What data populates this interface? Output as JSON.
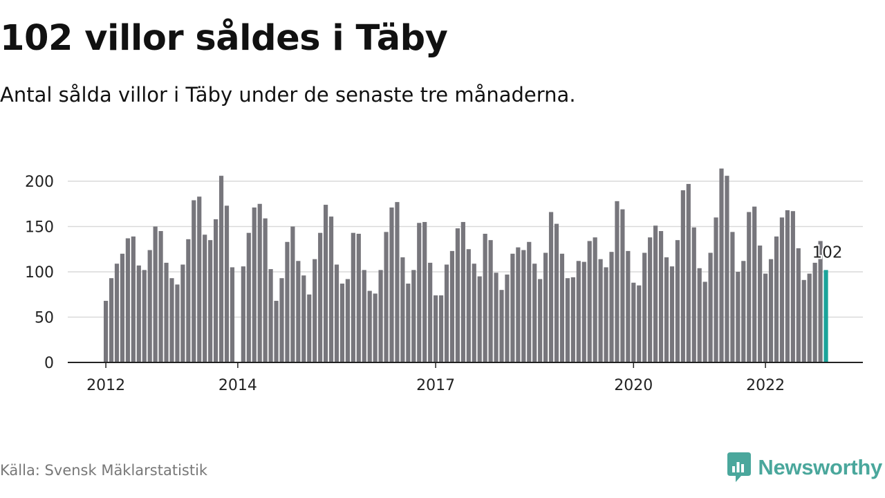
{
  "header": {
    "title": "102 villor såldes i Täby",
    "subtitle": "Antal sålda villor i Täby under de senaste tre månaderna."
  },
  "footer": {
    "source": "Källa: Svensk Mäklarstatistik",
    "brand": "Newsworthy"
  },
  "colors": {
    "bar": "#77767c",
    "highlight": "#1aa39a",
    "grid": "#d9d9d9",
    "axis": "#222222",
    "brand": "#4aa79c"
  },
  "chart_data": {
    "type": "bar",
    "ylim": [
      0,
      225
    ],
    "yticks": [
      0,
      50,
      100,
      150,
      200
    ],
    "grid": true,
    "xtick_labels": [
      {
        "label": "2012",
        "index": 0
      },
      {
        "label": "2014",
        "index": 24
      },
      {
        "label": "2017",
        "index": 60
      },
      {
        "label": "2020",
        "index": 96
      },
      {
        "label": "2022",
        "index": 120
      }
    ],
    "highlight_label": "102",
    "values": [
      68,
      93,
      109,
      120,
      137,
      139,
      107,
      102,
      124,
      150,
      145,
      110,
      93,
      86,
      108,
      136,
      179,
      183,
      141,
      135,
      158,
      206,
      173,
      105,
      null,
      106,
      143,
      171,
      175,
      159,
      103,
      68,
      93,
      133,
      150,
      112,
      96,
      75,
      114,
      143,
      174,
      161,
      108,
      87,
      92,
      143,
      142,
      102,
      79,
      76,
      102,
      144,
      171,
      177,
      116,
      87,
      102,
      154,
      155,
      110,
      74,
      74,
      108,
      123,
      148,
      155,
      125,
      109,
      95,
      142,
      135,
      99,
      80,
      97,
      120,
      127,
      124,
      133,
      109,
      92,
      121,
      166,
      153,
      120,
      93,
      94,
      112,
      111,
      134,
      138,
      114,
      105,
      122,
      178,
      169,
      123,
      88,
      85,
      121,
      138,
      151,
      145,
      116,
      106,
      135,
      190,
      197,
      149,
      104,
      89,
      121,
      160,
      214,
      206,
      144,
      100,
      112,
      166,
      172,
      129,
      98,
      114,
      139,
      160,
      168,
      167,
      126,
      91,
      98,
      110,
      134,
      102
    ]
  }
}
